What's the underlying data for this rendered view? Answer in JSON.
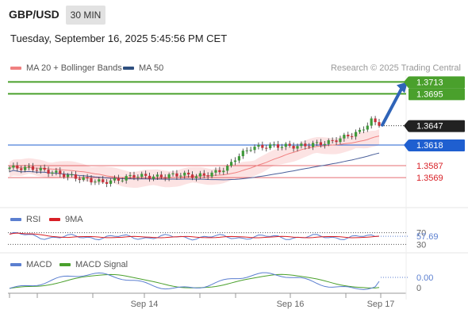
{
  "header": {
    "pair": "GBP/USD",
    "timeframe": "30 MIN",
    "datetime": "Tuesday, September 16, 2025 5:45:56 PM CET",
    "credit": "Research © 2025 Trading Central"
  },
  "legend": {
    "main": [
      {
        "label": "MA 20 + Bollinger Bands",
        "color": "#f08080"
      },
      {
        "label": "MA 50",
        "color": "#2f4f7f"
      }
    ],
    "rsi": [
      {
        "label": "RSI",
        "color": "#5b7fd0"
      },
      {
        "label": "9MA",
        "color": "#d81f26"
      }
    ],
    "macd": [
      {
        "label": "MACD",
        "color": "#5b7fd0"
      },
      {
        "label": "MACD Signal",
        "color": "#4aa02c"
      }
    ]
  },
  "chart_data": {
    "type": "candlestick",
    "x_ticks": [
      "Sep 14",
      "Sep 16",
      "Sep 17"
    ],
    "price_range": [
      1.353,
      1.3735
    ],
    "levels": {
      "resistance_2": {
        "value": 1.3713,
        "label": "1.3713",
        "color": "#4aa02c"
      },
      "resistance_1": {
        "value": 1.3695,
        "label": "1.3695",
        "color": "#4aa02c"
      },
      "current": {
        "value": 1.3647,
        "label": "1.3647",
        "color": "#222222"
      },
      "pivot": {
        "value": 1.3618,
        "label": "1.3618",
        "color": "#1f5fd0"
      },
      "support_1": {
        "value": 1.3587,
        "label": "1.3587",
        "color": "#d81f26"
      },
      "support_2": {
        "value": 1.3569,
        "label": "1.3569",
        "color": "#d81f26"
      }
    },
    "arrow": {
      "from": 1.3647,
      "to": 1.3713,
      "direction": "up"
    },
    "rsi": {
      "current": 57.69,
      "current_label": "57.69",
      "levels": [
        {
          "value": 70,
          "label": "70"
        },
        {
          "value": 30,
          "label": "30"
        }
      ],
      "range": [
        20,
        80
      ]
    },
    "macd": {
      "current": 0.0,
      "current_label": "0.00",
      "zero_label": "0",
      "range": [
        -0.0015,
        0.0015
      ]
    }
  }
}
